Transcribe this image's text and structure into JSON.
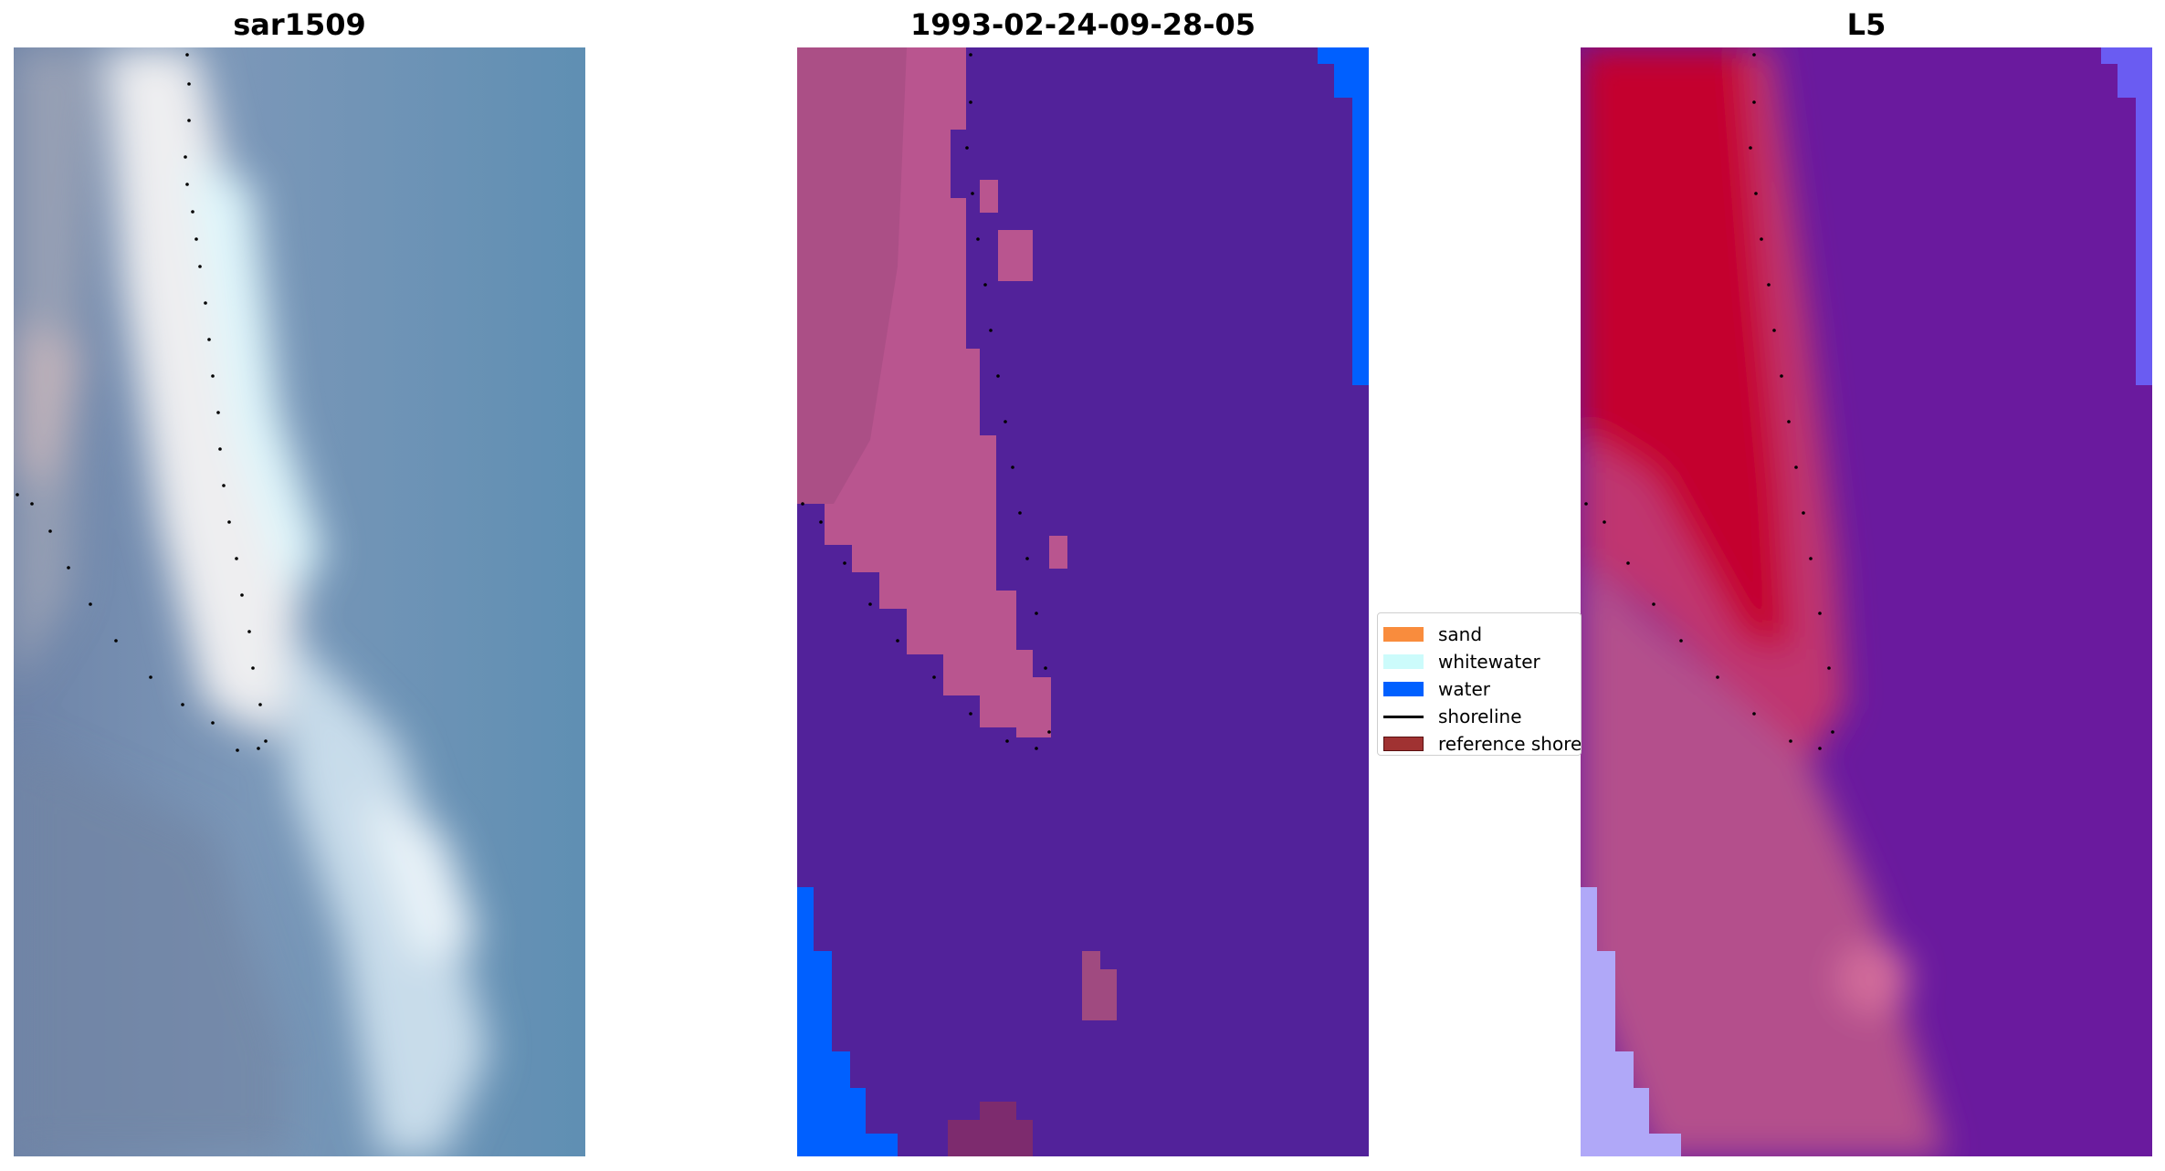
{
  "panels": {
    "rgb": {
      "title": "sar1509"
    },
    "classification": {
      "title": "1993-02-24-09-28-05"
    },
    "index": {
      "title": "L5"
    }
  },
  "legend": {
    "items": [
      {
        "label": "sand",
        "color": "#f98c3d",
        "kind": "patch"
      },
      {
        "label": "whitewater",
        "color": "#ccfbfb",
        "kind": "patch"
      },
      {
        "label": "water",
        "color": "#0060ff",
        "kind": "patch"
      },
      {
        "label": "shoreline",
        "color": "#000000",
        "kind": "line"
      },
      {
        "label": "reference shoreline",
        "color": "#a03232",
        "kind": "patch"
      }
    ]
  },
  "colors": {
    "water_class": "#52229a",
    "sand_class": "#b9558f",
    "water_blue": "#0060ff",
    "index_red": "#c4002f",
    "index_purple": "#6a1a9e"
  }
}
